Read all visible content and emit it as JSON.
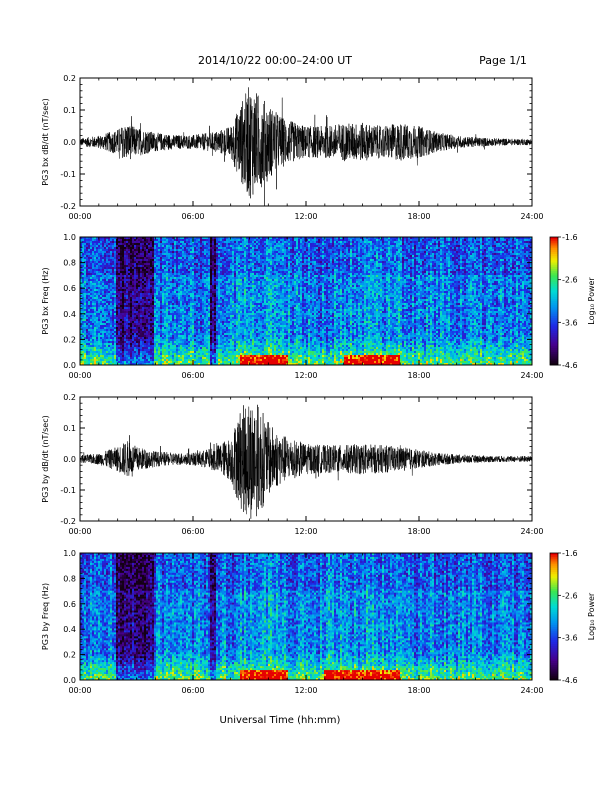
{
  "header": {
    "date_range": "2014/10/22   00:00–24:00 UT",
    "page": "Page 1/1"
  },
  "xlabel": "Universal Time (hh:mm)",
  "chart_data": [
    {
      "type": "line",
      "ylabel": "PG3 bx dB/dt (nT/sec)",
      "xlim": [
        0,
        24
      ],
      "ylim": [
        -0.2,
        0.2
      ],
      "xticks": [
        "00:00",
        "06:00",
        "12:00",
        "18:00",
        "24:00"
      ],
      "yticks": [
        "0.2",
        "0.1",
        "0.0",
        "-0.1",
        "-0.2"
      ],
      "envelope": {
        "hour": [
          0,
          1,
          2,
          2.5,
          3,
          4,
          5,
          6,
          7,
          8,
          8.5,
          9,
          9.5,
          10,
          10.5,
          11,
          12,
          13,
          14,
          15,
          16,
          17,
          18,
          19,
          20,
          21,
          22,
          23,
          24
        ],
        "amplitude": [
          0.012,
          0.02,
          0.04,
          0.06,
          0.045,
          0.03,
          0.022,
          0.022,
          0.03,
          0.05,
          0.12,
          0.18,
          0.15,
          0.12,
          0.09,
          0.07,
          0.05,
          0.05,
          0.06,
          0.06,
          0.05,
          0.06,
          0.05,
          0.03,
          0.02,
          0.015,
          0.012,
          0.01,
          0.01
        ]
      }
    },
    {
      "type": "heatmap",
      "ylabel": "PG3 bx Freq (Hz)",
      "xlim": [
        0,
        24
      ],
      "ylim": [
        0,
        1.0
      ],
      "xticks": [
        "00:00",
        "06:00",
        "12:00",
        "18:00",
        "24:00"
      ],
      "yticks": [
        "1.0",
        "0.8",
        "0.6",
        "0.4",
        "0.2",
        "0.0"
      ],
      "colorbar": {
        "label": "Log₁₀ Power",
        "range": [
          -4.6,
          -1.6
        ],
        "ticks": [
          "-1.6",
          "-2.6",
          "-3.6",
          "-4.6"
        ]
      },
      "quiet_intervals_hr": [
        [
          1.9,
          3.9
        ],
        [
          6.9,
          7.2
        ]
      ],
      "active_intervals_hr": [
        [
          8.5,
          11
        ],
        [
          14,
          17
        ]
      ]
    },
    {
      "type": "line",
      "ylabel": "PG3 by dB/dt (nT/sec)",
      "xlim": [
        0,
        24
      ],
      "ylim": [
        -0.2,
        0.2
      ],
      "xticks": [
        "00:00",
        "06:00",
        "12:00",
        "18:00",
        "24:00"
      ],
      "yticks": [
        "0.2",
        "0.1",
        "0.0",
        "-0.1",
        "-0.2"
      ],
      "envelope": {
        "hour": [
          0,
          1,
          2,
          2.5,
          3,
          4,
          5,
          6,
          7,
          8,
          8.5,
          9,
          9.5,
          10,
          10.5,
          11,
          12,
          13,
          14,
          15,
          16,
          17,
          18,
          19,
          20,
          21,
          22,
          23,
          24
        ],
        "amplitude": [
          0.012,
          0.018,
          0.04,
          0.06,
          0.04,
          0.025,
          0.02,
          0.02,
          0.035,
          0.07,
          0.16,
          0.2,
          0.18,
          0.12,
          0.09,
          0.07,
          0.05,
          0.045,
          0.045,
          0.05,
          0.045,
          0.04,
          0.03,
          0.02,
          0.015,
          0.012,
          0.01,
          0.01,
          0.01
        ]
      }
    },
    {
      "type": "heatmap",
      "ylabel": "PG3 by Freq (Hz)",
      "xlim": [
        0,
        24
      ],
      "ylim": [
        0,
        1.0
      ],
      "xticks": [
        "00:00",
        "06:00",
        "12:00",
        "18:00",
        "24:00"
      ],
      "yticks": [
        "1.0",
        "0.8",
        "0.6",
        "0.4",
        "0.2",
        "0.0"
      ],
      "colorbar": {
        "label": "Log₁₀ Power",
        "range": [
          -4.6,
          -1.6
        ],
        "ticks": [
          "-1.6",
          "-2.6",
          "-3.6",
          "-4.6"
        ]
      },
      "quiet_intervals_hr": [
        [
          1.9,
          3.9
        ],
        [
          6.9,
          7.2
        ]
      ],
      "active_intervals_hr": [
        [
          8.5,
          11
        ],
        [
          13,
          17
        ]
      ]
    }
  ]
}
